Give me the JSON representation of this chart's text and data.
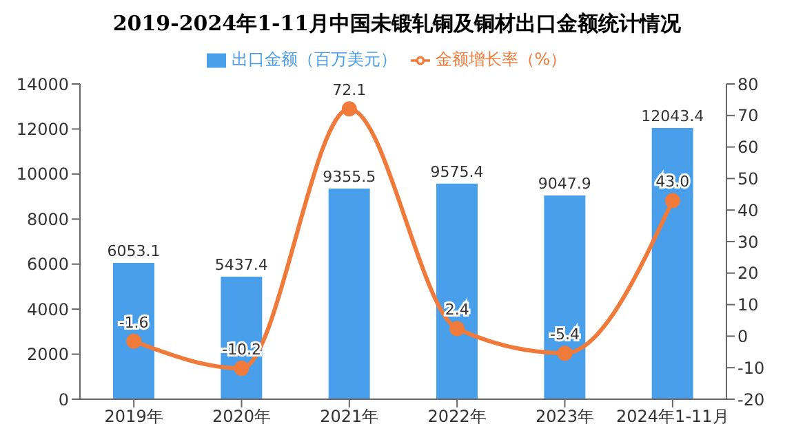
{
  "chart_data": {
    "type": "bar",
    "title": "2019-2024年1-11月中国未锻轧铜及铜材出口金额统计情况",
    "categories": [
      "2019年",
      "2020年",
      "2021年",
      "2022年",
      "2023年",
      "2024年1-11月"
    ],
    "series": [
      {
        "name": "出口金额（百万美元）",
        "color": "#4a9fea",
        "values": [
          6053.1,
          5437.4,
          9355.5,
          9575.4,
          9047.9,
          12043.4
        ],
        "value_labels": [
          "6053.1",
          "5437.4",
          "9355.5",
          "9575.4",
          "9047.9",
          "12043.4"
        ]
      },
      {
        "name": "金额增长率（%）",
        "type": "line",
        "axis": "y2",
        "color": "#f07a3a",
        "values": [
          -1.6,
          -10.2,
          72.1,
          2.4,
          -5.4,
          43.0
        ],
        "value_labels": [
          "-1.6",
          "-10.2",
          "72.1",
          "2.4",
          "-5.4",
          "43.0"
        ]
      }
    ],
    "ylim": [
      0,
      14000
    ],
    "yticks": [
      0,
      2000,
      4000,
      6000,
      8000,
      10000,
      12000,
      14000
    ],
    "y2lim": [
      -20,
      80
    ],
    "y2ticks": [
      -20,
      -10,
      0,
      10,
      20,
      30,
      40,
      50,
      60,
      70,
      80
    ],
    "legend": "top",
    "grid": false,
    "marker": "circle"
  }
}
